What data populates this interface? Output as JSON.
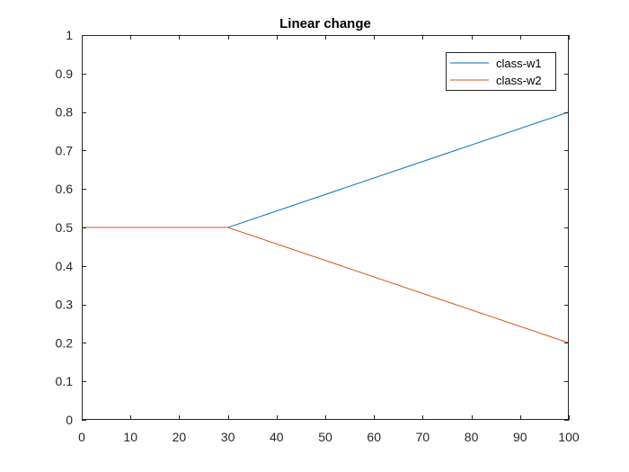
{
  "chart_data": {
    "type": "line",
    "title": "Linear change",
    "xlabel": "",
    "ylabel": "",
    "xlim": [
      0,
      100
    ],
    "ylim": [
      0,
      1
    ],
    "xticks": [
      0,
      10,
      20,
      30,
      40,
      50,
      60,
      70,
      80,
      90,
      100
    ],
    "xtick_labels": [
      "0",
      "10",
      "20",
      "30",
      "40",
      "50",
      "60",
      "70",
      "80",
      "90",
      "100"
    ],
    "yticks": [
      0,
      0.1,
      0.2,
      0.3,
      0.4,
      0.5,
      0.6,
      0.7,
      0.8,
      0.9,
      1
    ],
    "ytick_labels": [
      "0",
      "0.1",
      "0.2",
      "0.3",
      "0.4",
      "0.5",
      "0.6",
      "0.7",
      "0.8",
      "0.9",
      "1"
    ],
    "grid": false,
    "legend_position": "top-right",
    "series": [
      {
        "name": "class-w1",
        "color": "#0072BD",
        "x": [
          0,
          30,
          100
        ],
        "y": [
          0.5,
          0.5,
          0.8
        ]
      },
      {
        "name": "class-w2",
        "color": "#D95319",
        "x": [
          0,
          30,
          100
        ],
        "y": [
          0.5,
          0.5,
          0.2
        ]
      }
    ]
  }
}
